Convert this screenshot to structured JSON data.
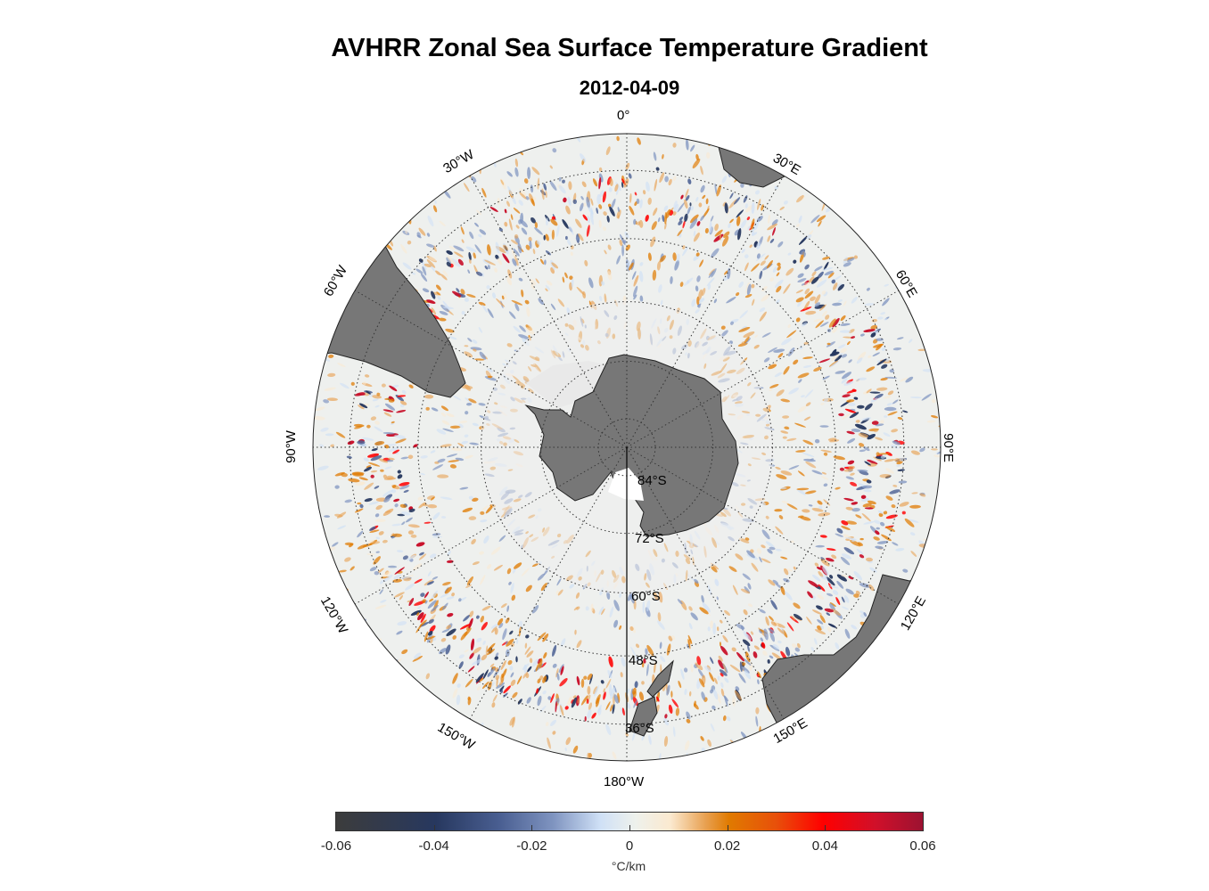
{
  "title": "AVHRR Zonal Sea Surface Temperature Gradient",
  "date": "2012-04-09",
  "map": {
    "projection": "south polar stereographic",
    "meridian_labels": [
      "0°",
      "30°E",
      "60°E",
      "90°E",
      "120°E",
      "150°E",
      "180°W",
      "150°W",
      "120°W",
      "90°W",
      "60°W",
      "30°W"
    ],
    "latitude_labels": [
      "84°S",
      "72°S",
      "60°S",
      "48°S",
      "36°S"
    ],
    "land_color": "#777777"
  },
  "colorbar": {
    "ticks": [
      "-0.06",
      "-0.04",
      "-0.02",
      "0",
      "0.02",
      "0.04",
      "0.06"
    ],
    "range": [
      -0.06,
      0.06
    ],
    "units": "°C/km"
  }
}
